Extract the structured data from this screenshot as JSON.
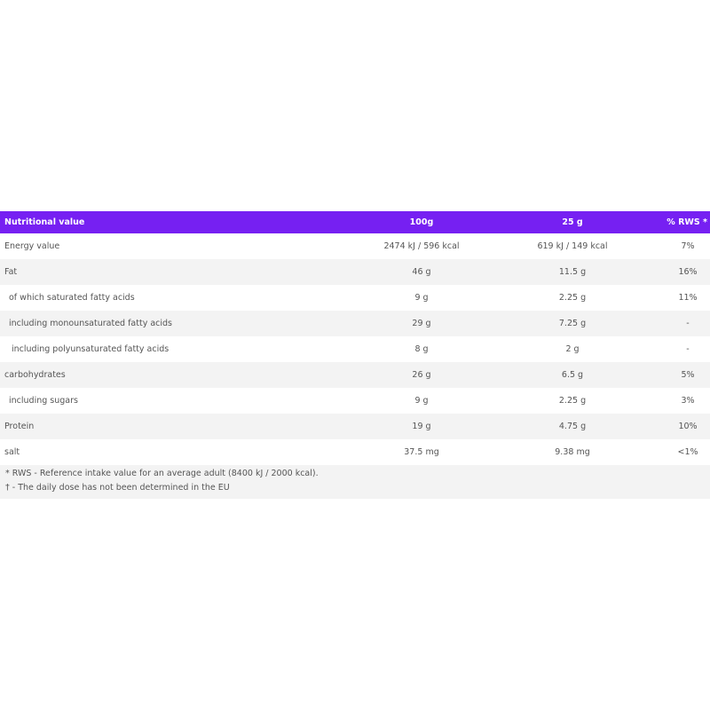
{
  "table": {
    "header": [
      "Nutritional value",
      "100g",
      "25 g",
      "% RWS *"
    ],
    "rows": [
      [
        "Energy value",
        "2474 kJ / 596 kcal",
        "619 kJ / 149 kcal",
        "7%"
      ],
      [
        "Fat",
        "46 g",
        "11.5 g",
        "16%"
      ],
      [
        "of which saturated fatty acids",
        "9 g",
        "2.25 g",
        "11%"
      ],
      [
        "including monounsaturated fatty acids",
        "29 g",
        "7.25 g",
        "-"
      ],
      [
        "including polyunsaturated fatty acids",
        "8 g",
        "2 g",
        "-"
      ],
      [
        "carbohydrates",
        "26 g",
        "6.5 g",
        "5%"
      ],
      [
        "including sugars",
        "9 g",
        "2.25 g",
        "3%"
      ],
      [
        "Protein",
        "19 g",
        "4.75 g",
        "10%"
      ],
      [
        "salt",
        "37.5 mg",
        "9.38 mg",
        "<1%"
      ]
    ],
    "footnotes": [
      "* RWS - Reference intake value for an average adult (8400 kJ / 2000 kcal).",
      "† - The daily dose has not been determined in the EU"
    ]
  }
}
